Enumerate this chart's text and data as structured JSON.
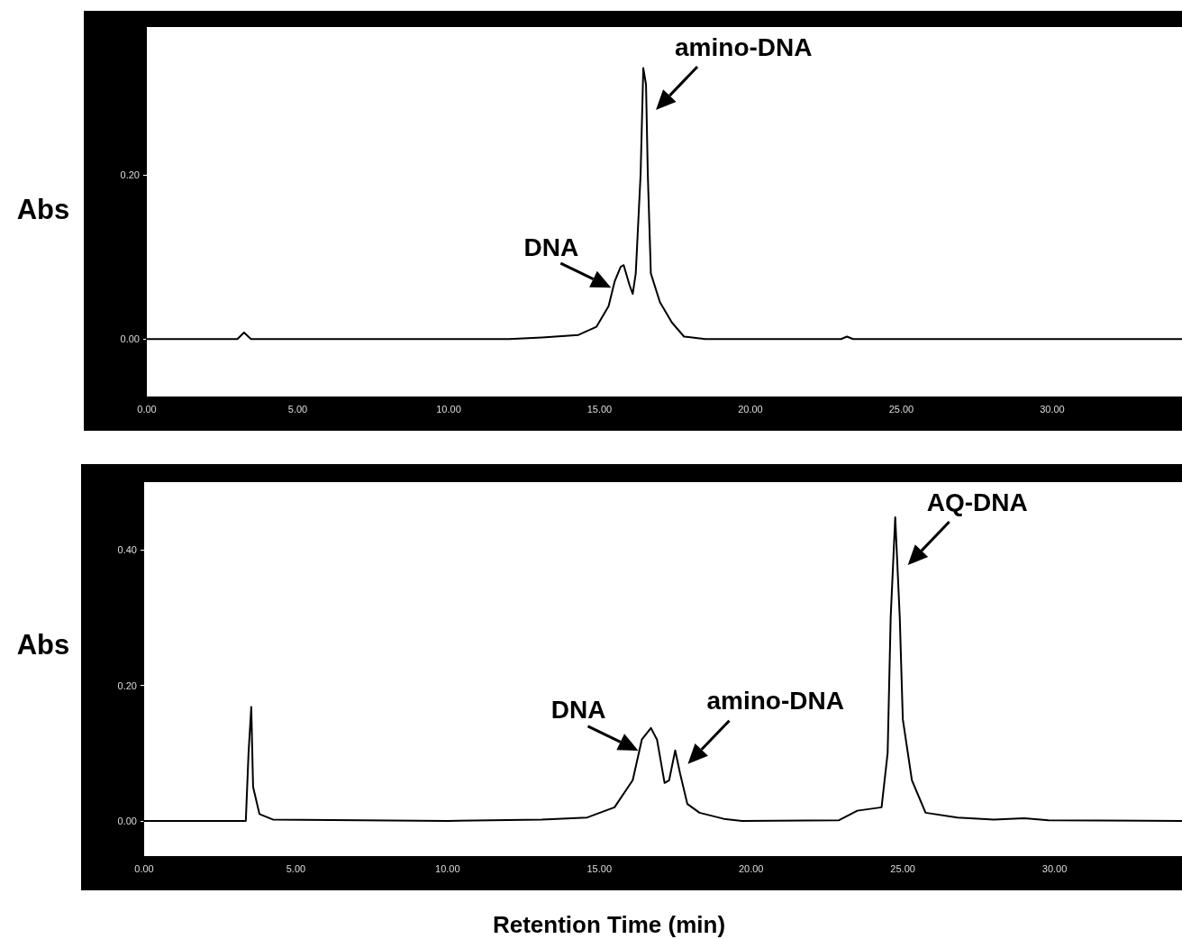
{
  "chart_data": [
    {
      "type": "line",
      "ylabel": "Abs",
      "xlim": [
        0,
        34.3
      ],
      "ylim": [
        -0.07,
        0.38
      ],
      "xticks": [
        {
          "value": 0,
          "label": "0.00"
        },
        {
          "value": 5,
          "label": "5.00"
        },
        {
          "value": 10,
          "label": "10.00"
        },
        {
          "value": 15,
          "label": "15.00"
        },
        {
          "value": 20,
          "label": "20.00"
        },
        {
          "value": 25,
          "label": "25.00"
        },
        {
          "value": 30,
          "label": "30.00"
        }
      ],
      "yticks": [
        {
          "value": 0,
          "label": "0.00"
        },
        {
          "value": 0.2,
          "label": "0.20"
        }
      ],
      "marker": "none",
      "line_style": "solid",
      "series": [
        {
          "color": "#000000",
          "x": [
            0,
            3.0,
            3.22,
            3.45,
            6,
            12,
            13.1,
            14.3,
            14.9,
            15.3,
            15.5,
            15.7,
            15.8,
            16.0,
            16.1,
            16.2,
            16.36,
            16.45,
            16.54,
            16.6,
            16.7,
            17.0,
            17.4,
            17.8,
            18.5,
            23.0,
            23.2,
            23.4,
            30,
            34.3
          ],
          "values": [
            0,
            0,
            0.008,
            0,
            0,
            0,
            0.002,
            0.005,
            0.015,
            0.04,
            0.07,
            0.088,
            0.09,
            0.065,
            0.055,
            0.08,
            0.2,
            0.33,
            0.31,
            0.2,
            0.08,
            0.045,
            0.02,
            0.003,
            0,
            0,
            0.003,
            0,
            0,
            0
          ]
        }
      ],
      "annotations": [
        {
          "text": "DNA",
          "x": 15.8,
          "y": 0.09
        },
        {
          "text": "amino-DNA",
          "x": 16.45,
          "y": 0.33
        }
      ]
    },
    {
      "type": "line",
      "ylabel": "Abs",
      "xlabel": "Retention Time (min)",
      "xlim": [
        0,
        34.2
      ],
      "ylim": [
        -0.052,
        0.5
      ],
      "xticks": [
        {
          "value": 0,
          "label": "0.00"
        },
        {
          "value": 5,
          "label": "5.00"
        },
        {
          "value": 10,
          "label": "10.00"
        },
        {
          "value": 15,
          "label": "15.00"
        },
        {
          "value": 20,
          "label": "20.00"
        },
        {
          "value": 25,
          "label": "25.00"
        },
        {
          "value": 30,
          "label": "30.00"
        }
      ],
      "yticks": [
        {
          "value": 0,
          "label": "0.00"
        },
        {
          "value": 0.2,
          "label": "0.20"
        },
        {
          "value": 0.4,
          "label": "0.40"
        }
      ],
      "marker": "none",
      "line_style": "solid",
      "series": [
        {
          "color": "#000000",
          "x": [
            0,
            3.35,
            3.44,
            3.53,
            3.59,
            3.8,
            4.24,
            10,
            13.1,
            14.6,
            15.5,
            16.1,
            16.4,
            16.7,
            16.9,
            17.15,
            17.3,
            17.5,
            17.66,
            17.9,
            18.3,
            19.1,
            19.7,
            22.9,
            23.5,
            24.3,
            24.5,
            24.6,
            24.75,
            24.9,
            25.0,
            25.3,
            25.75,
            26.8,
            28.0,
            29.0,
            29.8,
            34.2
          ],
          "values": [
            0,
            0,
            0.1,
            0.168,
            0.05,
            0.01,
            0.002,
            0,
            0.002,
            0.005,
            0.02,
            0.06,
            0.12,
            0.137,
            0.12,
            0.056,
            0.06,
            0.104,
            0.07,
            0.025,
            0.012,
            0.003,
            0,
            0.001,
            0.015,
            0.02,
            0.1,
            0.3,
            0.448,
            0.3,
            0.15,
            0.06,
            0.012,
            0.005,
            0.002,
            0.004,
            0.001,
            0
          ]
        }
      ],
      "annotations": [
        {
          "text": "DNA",
          "x": 16.7,
          "y": 0.137
        },
        {
          "text": "amino-DNA",
          "x": 17.5,
          "y": 0.104
        },
        {
          "text": "AQ-DNA",
          "x": 24.75,
          "y": 0.448
        }
      ]
    }
  ]
}
